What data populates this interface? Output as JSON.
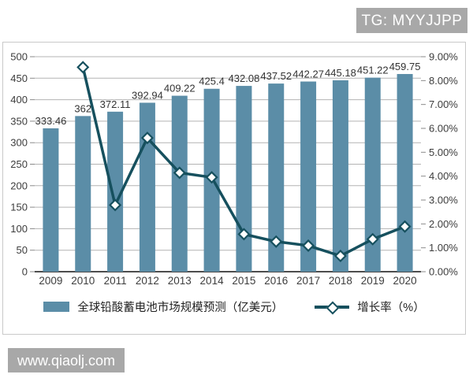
{
  "badges": {
    "top_right": "TG: MYYJJPP",
    "bottom_left": "www.qiaolj.com"
  },
  "chart_data": {
    "type": "bar",
    "subtype": "bar-and-line-combo",
    "categories": [
      "2009",
      "2010",
      "2011",
      "2012",
      "2013",
      "2014",
      "2015",
      "2016",
      "2017",
      "2018",
      "2019",
      "2020"
    ],
    "series": [
      {
        "name": "全球铅酸蓄电池市场规模预测（亿美元）",
        "type": "bar",
        "axis": "left",
        "color": "#5b8da7",
        "values": [
          333.46,
          362,
          372.11,
          392.94,
          409.22,
          425.4,
          432.08,
          437.52,
          442.27,
          445.18,
          451.22,
          459.75
        ],
        "labels": [
          "333.46",
          "362",
          "372.11",
          "392.94",
          "409.22",
          "425.4",
          "432.08",
          "437.52",
          "442.27",
          "445.18",
          "451.22",
          "459.75"
        ]
      },
      {
        "name": "增长率（%）",
        "type": "line",
        "axis": "right",
        "color": "#16505e",
        "marker": "diamond",
        "x_start_index": 1,
        "values": [
          8.56,
          2.79,
          5.6,
          4.14,
          3.95,
          1.57,
          1.26,
          1.09,
          0.66,
          1.36,
          1.89
        ]
      }
    ],
    "left_axis": {
      "min": 0,
      "max": 500,
      "step": 50,
      "ticks": [
        "500",
        "450",
        "400",
        "350",
        "300",
        "250",
        "200",
        "150",
        "100",
        "50",
        "0"
      ]
    },
    "right_axis": {
      "min": 0,
      "max": 9,
      "step": 1,
      "ticks": [
        "9.00%",
        "8.00%",
        "7.00%",
        "6.00%",
        "5.00%",
        "4.00%",
        "3.00%",
        "2.00%",
        "1.00%",
        "0.00%"
      ]
    },
    "grid": "horizontal",
    "legend_position": "bottom"
  }
}
